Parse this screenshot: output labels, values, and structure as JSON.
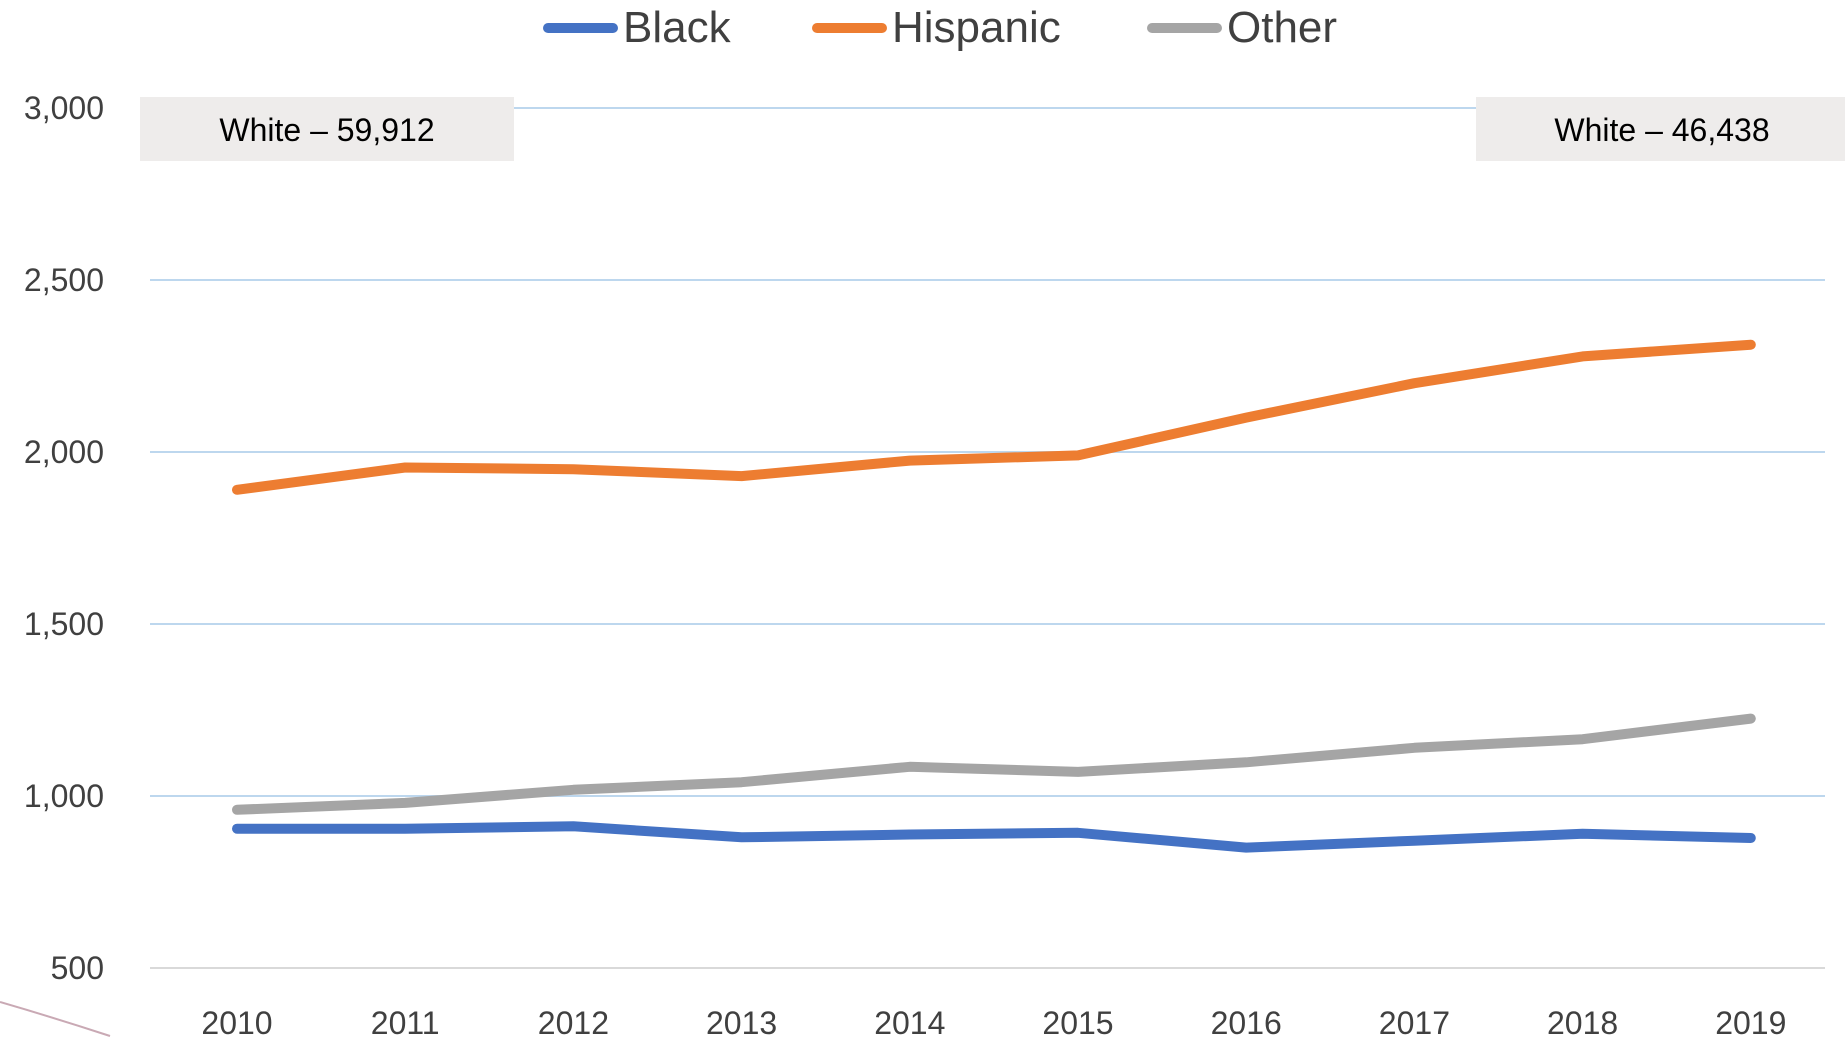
{
  "chart_data": {
    "type": "line",
    "title": "",
    "xlabel": "",
    "ylabel": "",
    "categories": [
      "2010",
      "2011",
      "2012",
      "2013",
      "2014",
      "2015",
      "2016",
      "2017",
      "2018",
      "2019"
    ],
    "series": [
      {
        "name": "Black",
        "color": "#4472C4",
        "values": [
          905,
          905,
          912,
          880,
          888,
          893,
          850,
          870,
          890,
          878
        ]
      },
      {
        "name": "Hispanic",
        "color": "#ED7D31",
        "values": [
          1890,
          1955,
          1950,
          1930,
          1975,
          1990,
          2100,
          2200,
          2278,
          2312
        ]
      },
      {
        "name": "Other",
        "color": "#A5A5A5",
        "values": [
          960,
          980,
          1018,
          1040,
          1085,
          1070,
          1098,
          1140,
          1165,
          1225
        ]
      }
    ],
    "ylim": [
      500,
      3000
    ],
    "yticks": [
      500,
      1000,
      1500,
      2000,
      2500,
      3000
    ],
    "ytick_labels": [
      "500",
      "1,000",
      "1,500",
      "2,000",
      "2,500",
      "3,000"
    ],
    "grid": true,
    "grid_color": "#BDD7EE",
    "legend": "top-center",
    "annotations": [
      {
        "text": "White – 59,912",
        "position": "top-left"
      },
      {
        "text": "White – 46,438",
        "position": "top-right"
      }
    ]
  }
}
